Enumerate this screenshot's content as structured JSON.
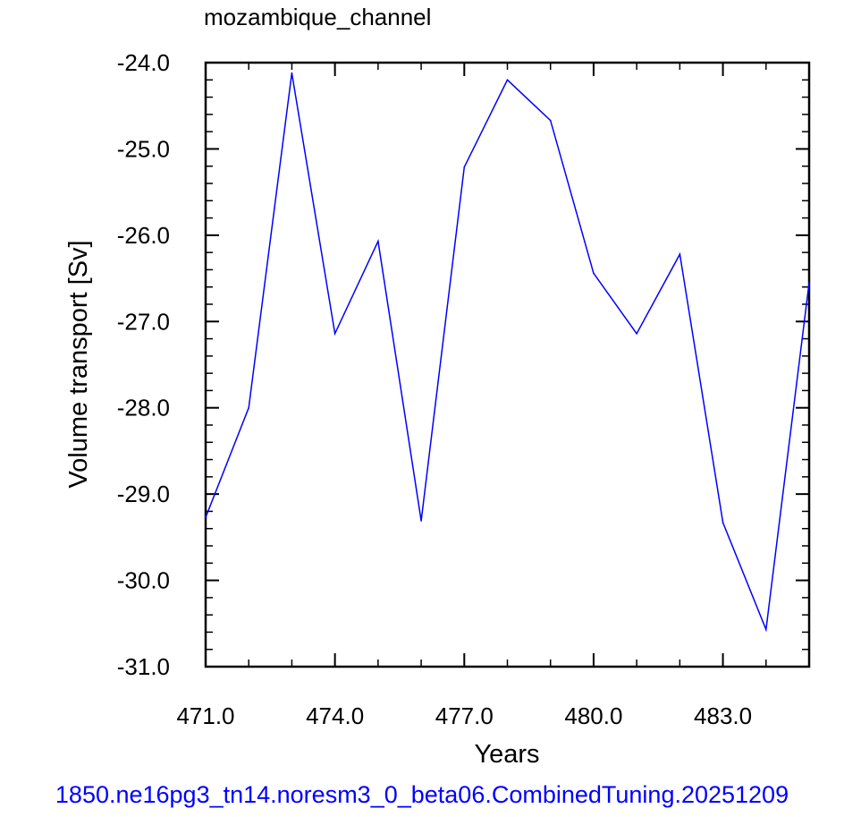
{
  "footer_text": "1850.ne16pg3_tn14.noresm3_0_beta06.CombinedTuning.20251209",
  "colors": {
    "line": "#0000ff",
    "footer": "#0000ff",
    "axes": "#000000"
  },
  "chart_data": {
    "type": "line",
    "title": "mozambique_channel",
    "xlabel": "Years",
    "ylabel": "Volume transport [Sv]",
    "xlim": [
      471,
      485
    ],
    "ylim": [
      -31,
      -24
    ],
    "xticks": [
      471,
      474,
      477,
      480,
      483
    ],
    "xtick_labels": [
      "471.0",
      "474.0",
      "477.0",
      "480.0",
      "483.0"
    ],
    "yticks": [
      -24,
      -25,
      -26,
      -27,
      -28,
      -29,
      -30,
      -31
    ],
    "ytick_labels": [
      "-24.0",
      "-25.0",
      "-26.0",
      "-27.0",
      "-28.0",
      "-29.0",
      "-30.0",
      "-31.0"
    ],
    "grid": false,
    "series": [
      {
        "x": [
          471,
          472,
          473,
          474,
          475,
          476,
          477,
          478,
          479,
          480,
          481,
          482,
          483,
          484,
          485
        ],
        "values": [
          -29.27,
          -28.0,
          -24.12,
          -27.14,
          -26.07,
          -29.31,
          -25.21,
          -24.2,
          -24.67,
          -26.44,
          -27.14,
          -26.22,
          -29.33,
          -30.57,
          -26.55
        ]
      }
    ]
  }
}
